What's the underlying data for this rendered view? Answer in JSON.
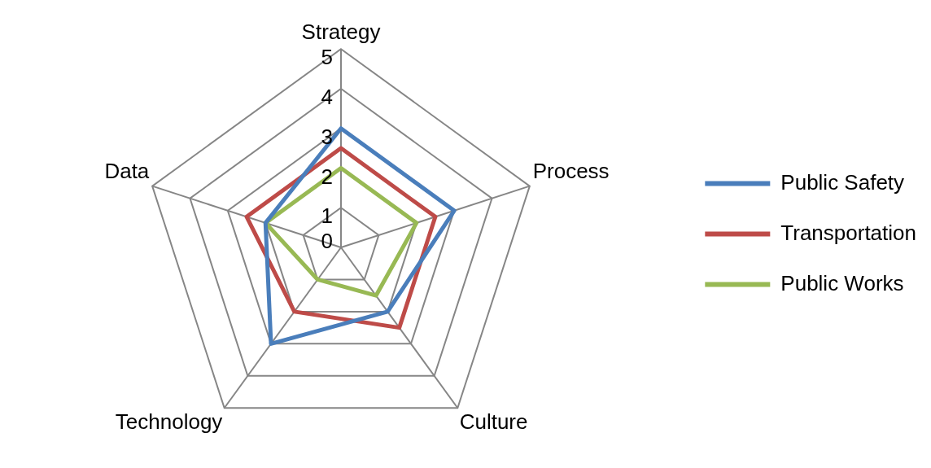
{
  "chart_data": {
    "type": "radar",
    "categories": [
      "Strategy",
      "Process",
      "Culture",
      "Technology",
      "Data"
    ],
    "series": [
      {
        "name": "Public Safety",
        "color": "#4a7ebb",
        "values": [
          3,
          3,
          2,
          3,
          2
        ]
      },
      {
        "name": "Transportation",
        "color": "#be4b48",
        "values": [
          2.5,
          2.5,
          2.5,
          2,
          2.5
        ]
      },
      {
        "name": "Public Works",
        "color": "#98b954",
        "values": [
          2,
          2,
          1.5,
          1,
          2
        ]
      }
    ],
    "ylim": [
      0,
      5
    ],
    "yticks": [
      0,
      1,
      2,
      3,
      4,
      5
    ],
    "grid": true,
    "legend": "right",
    "marker": "none",
    "line_style": "solid"
  }
}
